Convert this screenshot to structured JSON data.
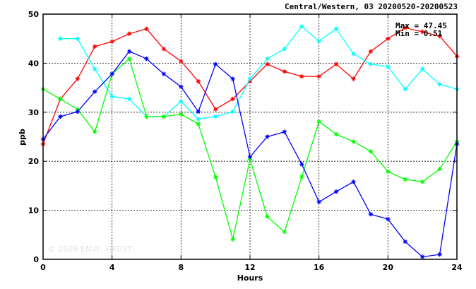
{
  "chart_data": {
    "type": "line",
    "title": "Central/Western, 03 20200520-20200523",
    "xlabel": "Hours",
    "ylabel": "ppb",
    "xlim": [
      0,
      24
    ],
    "ylim": [
      0,
      50
    ],
    "xticks": [
      0,
      4,
      8,
      12,
      16,
      20,
      24
    ],
    "yticks": [
      0,
      10,
      20,
      30,
      40,
      50
    ],
    "grid": true,
    "max_label": "Max = 47.45",
    "min_label": "Min = 0.51",
    "watermark": "© 2026 ENVF, HKUST",
    "series": [
      {
        "color": "#ff0000",
        "x": [
          0,
          1,
          2,
          3,
          4,
          5,
          6,
          7,
          8,
          9,
          10,
          11,
          12,
          13,
          14,
          15,
          16,
          17,
          18,
          19,
          20,
          21,
          22,
          23,
          24
        ],
        "values": [
          23.5,
          32.7,
          36.8,
          43.4,
          44.4,
          46,
          47,
          42.9,
          40.4,
          36.3,
          30.6,
          32.7,
          36.3,
          39.8,
          38.3,
          37.3,
          37.3,
          39.8,
          36.8,
          42.4,
          45,
          47.2,
          46.4,
          45.5,
          41.4
        ]
      },
      {
        "color": "#00ffff",
        "x": [
          1,
          2,
          3,
          4,
          5,
          6,
          7,
          8,
          9,
          10,
          11,
          12,
          13,
          14,
          15,
          16,
          17,
          18,
          19,
          20,
          21,
          22,
          23,
          24
        ],
        "values": [
          45,
          45,
          38.8,
          33.2,
          32.7,
          29.1,
          29.1,
          32.2,
          28.6,
          29.1,
          30.1,
          36.8,
          40.9,
          42.9,
          47.5,
          44.5,
          47,
          41.9,
          39.8,
          39.3,
          34.7,
          38.8,
          35.7,
          34.7
        ]
      },
      {
        "color": "#00ff00",
        "x": [
          0,
          1,
          2,
          3,
          4,
          5,
          6,
          7,
          8,
          9,
          10,
          11,
          12,
          13,
          14,
          15,
          16,
          17,
          18,
          19,
          20,
          21,
          22,
          23,
          24
        ],
        "values": [
          34.7,
          32.7,
          30.6,
          26,
          37.8,
          40.9,
          29.1,
          29.1,
          29.6,
          27.6,
          16.8,
          4.1,
          20.4,
          8.7,
          5.6,
          16.8,
          28.1,
          25.5,
          24,
          22,
          17.9,
          16.3,
          15.8,
          18.4,
          24
        ]
      },
      {
        "color": "#0000ff",
        "x": [
          0,
          1,
          2,
          3,
          4,
          5,
          6,
          7,
          8,
          9,
          10,
          11,
          12,
          13,
          14,
          15,
          16,
          17,
          18,
          19,
          20,
          21,
          22,
          23,
          24
        ],
        "values": [
          24.5,
          29.1,
          30.1,
          34.2,
          37.8,
          42.4,
          40.9,
          37.8,
          35.2,
          30.1,
          39.8,
          36.8,
          20.9,
          25,
          26,
          19.4,
          11.7,
          13.8,
          15.8,
          9.2,
          8.2,
          3.6,
          0.5,
          1,
          23.5
        ]
      }
    ]
  }
}
